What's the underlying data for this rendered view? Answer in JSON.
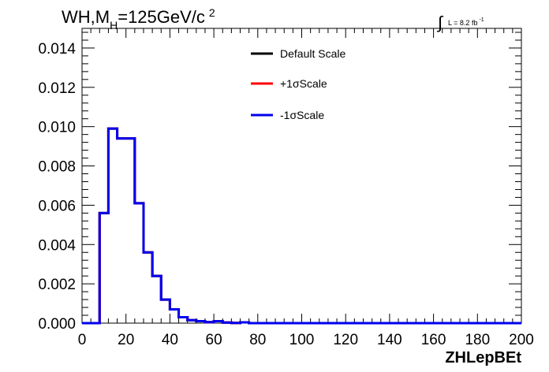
{
  "chart_data": {
    "type": "line",
    "title": "WH,M_H=125GeV/c 2",
    "title_parts": {
      "main": "WH,M",
      "sub": "H",
      "rest": "=125GeV/c",
      "sup": "2"
    },
    "lumi": {
      "integral": "∫",
      "text": "L = 8.2 fb",
      "sup": "-1"
    },
    "xlabel": "ZHLepBEt",
    "ylabel": "",
    "xlim": [
      0,
      200
    ],
    "ylim": [
      0,
      0.015
    ],
    "x_ticks": [
      0,
      20,
      40,
      60,
      80,
      100,
      120,
      140,
      160,
      180,
      200
    ],
    "x_tick_labels": [
      "0",
      "20",
      "40",
      "60",
      "80",
      "100",
      "120",
      "140",
      "160",
      "180",
      "200"
    ],
    "y_ticks": [
      0,
      0.002,
      0.004,
      0.006,
      0.008,
      0.01,
      0.012,
      0.014
    ],
    "y_tick_labels": [
      "0.000",
      "0.002",
      "0.004",
      "0.006",
      "0.008",
      "0.010",
      "0.012",
      "0.014"
    ],
    "bin_edges": [
      0,
      4,
      8,
      12,
      16,
      20,
      24,
      28,
      32,
      36,
      40,
      44,
      48,
      52,
      56,
      60,
      64,
      68,
      72,
      76,
      80,
      200
    ],
    "legend_position": "top-center",
    "grid": false,
    "series": [
      {
        "name": "Default Scale",
        "color": "#000000",
        "values": [
          0,
          0,
          0.0056,
          0.0099,
          0.0094,
          0.0094,
          0.0061,
          0.0036,
          0.0024,
          0.0012,
          0.0007,
          0.0003,
          0.00015,
          0.0001,
          5e-05,
          0.0001,
          3e-05,
          1e-05,
          4e-05,
          0,
          0
        ]
      },
      {
        "name": "+1σScale",
        "color": "#ff0000",
        "values": [
          0,
          0,
          0.0056,
          0.0099,
          0.0094,
          0.0094,
          0.0061,
          0.0036,
          0.0024,
          0.0012,
          0.0007,
          0.0003,
          0.00015,
          0.0001,
          5e-05,
          0.0001,
          3e-05,
          1e-05,
          4e-05,
          0,
          0
        ]
      },
      {
        "name": "-1σScale",
        "color": "#0000ee",
        "values": [
          0,
          0,
          0.0056,
          0.0099,
          0.0094,
          0.0094,
          0.0061,
          0.0036,
          0.0024,
          0.0012,
          0.0007,
          0.0003,
          0.00015,
          0.0001,
          5e-05,
          0.0001,
          3e-05,
          1e-05,
          4e-05,
          0,
          0
        ]
      }
    ]
  }
}
